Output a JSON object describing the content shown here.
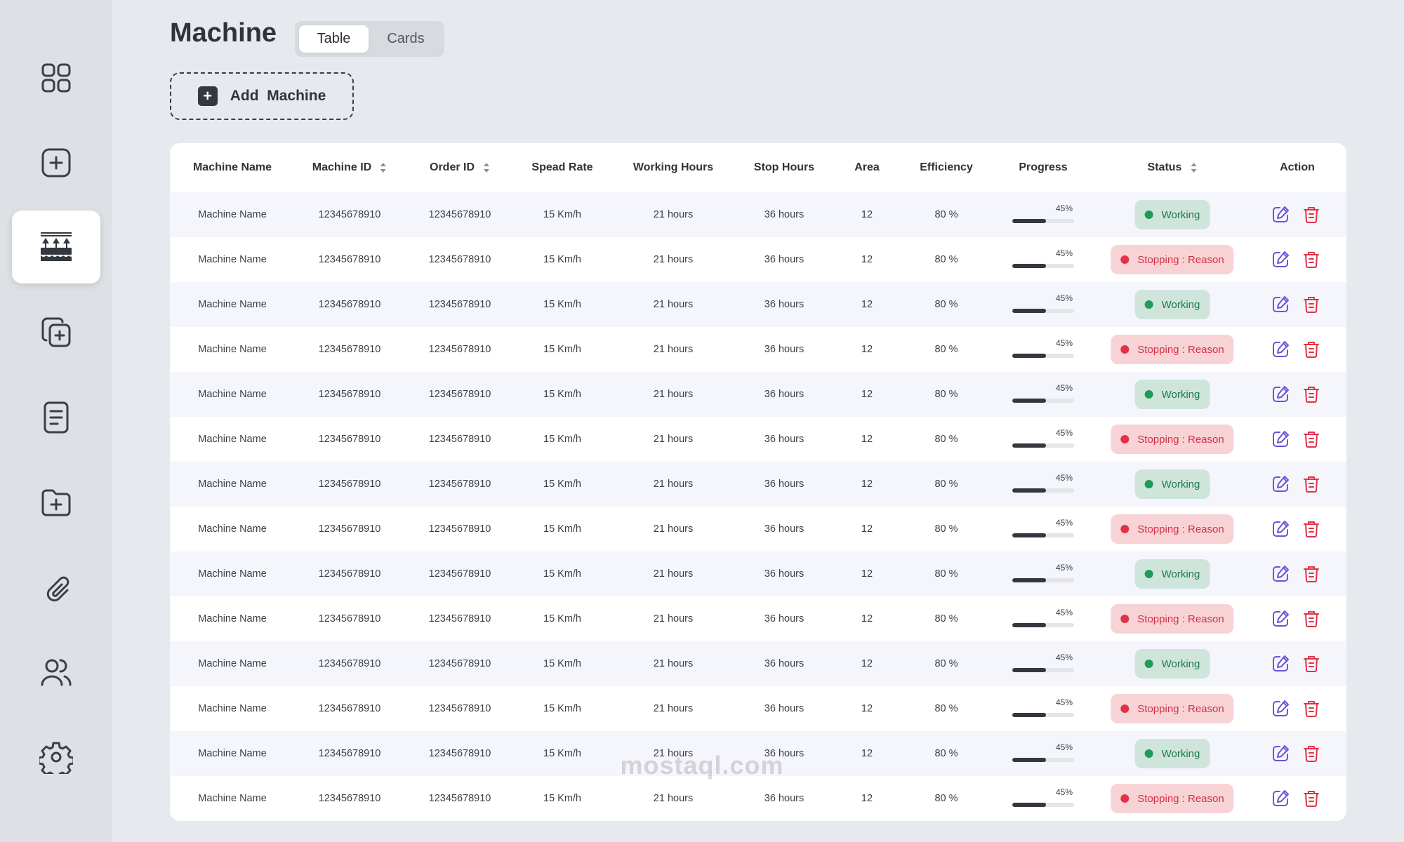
{
  "page": {
    "title": "Machine",
    "views": [
      {
        "label": "Table",
        "active": true
      },
      {
        "label": "Cards",
        "active": false
      }
    ],
    "add_button_label": "Add  Machine"
  },
  "sidebar": {
    "items": [
      {
        "icon": "dashboard-grid-icon",
        "active": false
      },
      {
        "icon": "add-square-icon",
        "active": false
      },
      {
        "icon": "machine-icon",
        "active": true
      },
      {
        "icon": "copy-add-icon",
        "active": false
      },
      {
        "icon": "document-icon",
        "active": false
      },
      {
        "icon": "folder-add-icon",
        "active": false
      },
      {
        "icon": "paperclip-icon",
        "active": false
      },
      {
        "icon": "users-icon",
        "active": false
      },
      {
        "icon": "settings-gear-icon",
        "active": false
      }
    ]
  },
  "table": {
    "columns": [
      {
        "label": "Machine Name",
        "sortable": false
      },
      {
        "label": "Machine ID",
        "sortable": true
      },
      {
        "label": "Order ID",
        "sortable": true
      },
      {
        "label": "Spead Rate",
        "sortable": false
      },
      {
        "label": "Working Hours",
        "sortable": false
      },
      {
        "label": "Stop Hours",
        "sortable": false
      },
      {
        "label": "Area",
        "sortable": false
      },
      {
        "label": "Efficiency",
        "sortable": false
      },
      {
        "label": "Progress",
        "sortable": false
      },
      {
        "label": "Status",
        "sortable": true
      },
      {
        "label": "Action",
        "sortable": false
      }
    ],
    "rows": [
      {
        "name": "Machine Name",
        "machine_id": "12345678910",
        "order_id": "12345678910",
        "rate": "15 Km/h",
        "working": "21 hours",
        "stop": "36 hours",
        "area": "12",
        "efficiency": "80 %",
        "progress_label": "45%",
        "progress": 0.45,
        "status": "Working",
        "status_type": "working"
      },
      {
        "name": "Machine Name",
        "machine_id": "12345678910",
        "order_id": "12345678910",
        "rate": "15 Km/h",
        "working": "21 hours",
        "stop": "36 hours",
        "area": "12",
        "efficiency": "80 %",
        "progress_label": "45%",
        "progress": 0.45,
        "status": "Stopping : Reason",
        "status_type": "stopping"
      },
      {
        "name": "Machine Name",
        "machine_id": "12345678910",
        "order_id": "12345678910",
        "rate": "15 Km/h",
        "working": "21 hours",
        "stop": "36 hours",
        "area": "12",
        "efficiency": "80 %",
        "progress_label": "45%",
        "progress": 0.45,
        "status": "Working",
        "status_type": "working"
      },
      {
        "name": "Machine Name",
        "machine_id": "12345678910",
        "order_id": "12345678910",
        "rate": "15 Km/h",
        "working": "21 hours",
        "stop": "36 hours",
        "area": "12",
        "efficiency": "80 %",
        "progress_label": "45%",
        "progress": 0.45,
        "status": "Stopping : Reason",
        "status_type": "stopping"
      },
      {
        "name": "Machine Name",
        "machine_id": "12345678910",
        "order_id": "12345678910",
        "rate": "15 Km/h",
        "working": "21 hours",
        "stop": "36 hours",
        "area": "12",
        "efficiency": "80 %",
        "progress_label": "45%",
        "progress": 0.45,
        "status": "Working",
        "status_type": "working"
      },
      {
        "name": "Machine Name",
        "machine_id": "12345678910",
        "order_id": "12345678910",
        "rate": "15 Km/h",
        "working": "21 hours",
        "stop": "36 hours",
        "area": "12",
        "efficiency": "80 %",
        "progress_label": "45%",
        "progress": 0.45,
        "status": "Stopping : Reason",
        "status_type": "stopping"
      },
      {
        "name": "Machine Name",
        "machine_id": "12345678910",
        "order_id": "12345678910",
        "rate": "15 Km/h",
        "working": "21 hours",
        "stop": "36 hours",
        "area": "12",
        "efficiency": "80 %",
        "progress_label": "45%",
        "progress": 0.45,
        "status": "Working",
        "status_type": "working"
      },
      {
        "name": "Machine Name",
        "machine_id": "12345678910",
        "order_id": "12345678910",
        "rate": "15 Km/h",
        "working": "21 hours",
        "stop": "36 hours",
        "area": "12",
        "efficiency": "80 %",
        "progress_label": "45%",
        "progress": 0.45,
        "status": "Stopping : Reason",
        "status_type": "stopping"
      },
      {
        "name": "Machine Name",
        "machine_id": "12345678910",
        "order_id": "12345678910",
        "rate": "15 Km/h",
        "working": "21 hours",
        "stop": "36 hours",
        "area": "12",
        "efficiency": "80 %",
        "progress_label": "45%",
        "progress": 0.45,
        "status": "Working",
        "status_type": "working"
      },
      {
        "name": "Machine Name",
        "machine_id": "12345678910",
        "order_id": "12345678910",
        "rate": "15 Km/h",
        "working": "21 hours",
        "stop": "36 hours",
        "area": "12",
        "efficiency": "80 %",
        "progress_label": "45%",
        "progress": 0.45,
        "status": "Stopping : Reason",
        "status_type": "stopping"
      },
      {
        "name": "Machine Name",
        "machine_id": "12345678910",
        "order_id": "12345678910",
        "rate": "15 Km/h",
        "working": "21 hours",
        "stop": "36 hours",
        "area": "12",
        "efficiency": "80 %",
        "progress_label": "45%",
        "progress": 0.45,
        "status": "Working",
        "status_type": "working"
      },
      {
        "name": "Machine Name",
        "machine_id": "12345678910",
        "order_id": "12345678910",
        "rate": "15 Km/h",
        "working": "21 hours",
        "stop": "36 hours",
        "area": "12",
        "efficiency": "80 %",
        "progress_label": "45%",
        "progress": 0.45,
        "status": "Stopping : Reason",
        "status_type": "stopping"
      },
      {
        "name": "Machine Name",
        "machine_id": "12345678910",
        "order_id": "12345678910",
        "rate": "15 Km/h",
        "working": "21 hours",
        "stop": "36 hours",
        "area": "12",
        "efficiency": "80 %",
        "progress_label": "45%",
        "progress": 0.45,
        "status": "Working",
        "status_type": "working"
      },
      {
        "name": "Machine Name",
        "machine_id": "12345678910",
        "order_id": "12345678910",
        "rate": "15 Km/h",
        "working": "21 hours",
        "stop": "36 hours",
        "area": "12",
        "efficiency": "80 %",
        "progress_label": "45%",
        "progress": 0.45,
        "status": "Stopping : Reason",
        "status_type": "stopping"
      }
    ]
  },
  "watermark": "mostaql.com",
  "colors": {
    "working_text": "#1f7a4d",
    "working_bg": "#cfe5dc",
    "stopping_text": "#d63045",
    "stopping_bg": "#f8d3d6",
    "edit_icon": "#6a55d8",
    "delete_icon": "#e03347"
  }
}
